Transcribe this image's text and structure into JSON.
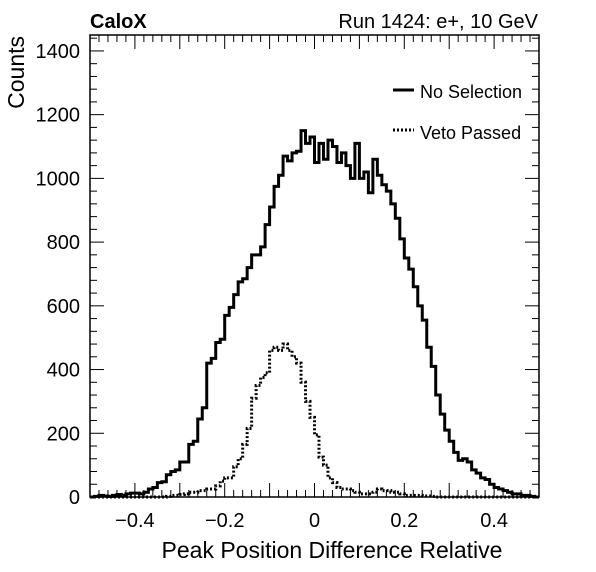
{
  "chart_data": {
    "type": "histogram",
    "title_left": "CaloX",
    "title_right": "Run 1424: e+, 10 GeV",
    "xlabel": "Peak Position Difference Relative",
    "ylabel": "Counts",
    "xlim": [
      -0.5,
      0.5
    ],
    "ylim": [
      0,
      1450
    ],
    "x_ticks": [
      -0.4,
      -0.2,
      0,
      0.2,
      0.4
    ],
    "x_tick_labels": [
      "−0.4",
      "−0.2",
      "0",
      "0.2",
      "0.4"
    ],
    "y_ticks": [
      0,
      200,
      400,
      600,
      800,
      1000,
      1200,
      1400
    ],
    "y_tick_labels": [
      "0",
      "200",
      "400",
      "600",
      "800",
      "1000",
      "1200",
      "1400"
    ],
    "legend_position": "top-right",
    "bin_width": 0.01,
    "bin_start": -0.5,
    "series": [
      {
        "name": "No Selection",
        "style": "solid",
        "values": [
          0,
          2,
          5,
          3,
          2,
          5,
          8,
          5,
          10,
          12,
          12,
          10,
          15,
          25,
          30,
          45,
          48,
          70,
          80,
          85,
          110,
          110,
          165,
          175,
          245,
          280,
          420,
          435,
          485,
          495,
          570,
          595,
          635,
          675,
          685,
          720,
          760,
          760,
          785,
          855,
          910,
          975,
          1010,
          1070,
          1055,
          1080,
          1085,
          1150,
          1110,
          1130,
          1050,
          1110,
          1060,
          1120,
          1100,
          1050,
          1080,
          1040,
          1000,
          1110,
          1000,
          1020,
          955,
          1060,
          1010,
          980,
          960,
          920,
          875,
          810,
          750,
          715,
          660,
          600,
          555,
          470,
          410,
          320,
          260,
          210,
          175,
          140,
          115,
          120,
          110,
          85,
          75,
          60,
          55,
          40,
          30,
          25,
          20,
          15,
          10,
          10,
          5,
          5,
          2,
          0
        ]
      },
      {
        "name": "Veto Passed",
        "style": "dotted",
        "values": [
          0,
          0,
          0,
          0,
          0,
          0,
          0,
          0,
          0,
          0,
          0,
          0,
          0,
          0,
          0,
          0,
          0,
          2,
          5,
          5,
          8,
          10,
          15,
          15,
          20,
          20,
          25,
          25,
          35,
          50,
          60,
          60,
          95,
          120,
          165,
          215,
          310,
          350,
          375,
          390,
          460,
          470,
          460,
          480,
          460,
          440,
          420,
          360,
          300,
          250,
          195,
          125,
          100,
          60,
          45,
          30,
          25,
          25,
          20,
          15,
          10,
          10,
          10,
          15,
          25,
          20,
          20,
          15,
          15,
          10,
          5,
          5,
          5,
          5,
          3,
          3,
          2,
          0,
          0,
          0,
          0,
          0,
          0,
          0,
          0,
          0,
          0,
          0,
          0,
          0,
          0,
          0,
          0,
          0,
          0,
          0,
          0,
          0,
          0,
          0
        ]
      }
    ]
  }
}
